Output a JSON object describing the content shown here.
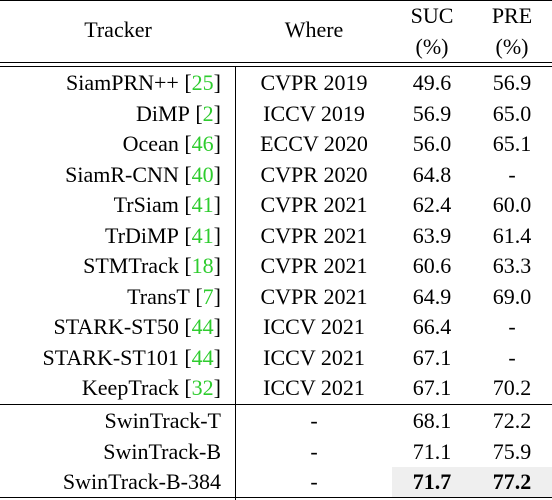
{
  "header": {
    "tracker": "Tracker",
    "where": "Where",
    "suc_line1": "SUC",
    "suc_line2": "(%)",
    "pre_line1": "PRE",
    "pre_line2": "(%)"
  },
  "rows": [
    {
      "name": "SiamPRN++",
      "ref": "25",
      "where": "CVPR 2019",
      "suc": "49.6",
      "pre": "56.9"
    },
    {
      "name": "DiMP",
      "ref": "2",
      "where": "ICCV 2019",
      "suc": "56.9",
      "pre": "65.0"
    },
    {
      "name": "Ocean",
      "ref": "46",
      "where": "ECCV 2020",
      "suc": "56.0",
      "pre": "65.1"
    },
    {
      "name": "SiamR-CNN",
      "ref": "40",
      "where": "CVPR 2020",
      "suc": "64.8",
      "pre": "-"
    },
    {
      "name": "TrSiam",
      "ref": "41",
      "where": "CVPR 2021",
      "suc": "62.4",
      "pre": "60.0"
    },
    {
      "name": "TrDiMP",
      "ref": "41",
      "where": "CVPR 2021",
      "suc": "63.9",
      "pre": "61.4"
    },
    {
      "name": "STMTrack",
      "ref": "18",
      "where": "CVPR 2021",
      "suc": "60.6",
      "pre": "63.3"
    },
    {
      "name": "TransT",
      "ref": "7",
      "where": "CVPR 2021",
      "suc": "64.9",
      "pre": "69.0"
    },
    {
      "name": "STARK-ST50",
      "ref": "44",
      "where": "ICCV 2021",
      "suc": "66.4",
      "pre": "-"
    },
    {
      "name": "STARK-ST101",
      "ref": "44",
      "where": "ICCV 2021",
      "suc": "67.1",
      "pre": "-"
    },
    {
      "name": "KeepTrack",
      "ref": "32",
      "where": "ICCV 2021",
      "suc": "67.1",
      "pre": "70.2"
    }
  ],
  "ours": [
    {
      "name": "SwinTrack-T",
      "where": "-",
      "suc": "68.1",
      "pre": "72.2"
    },
    {
      "name": "SwinTrack-B",
      "where": "-",
      "suc": "71.1",
      "pre": "75.9"
    },
    {
      "name": "SwinTrack-B-384",
      "where": "-",
      "suc": "71.7",
      "pre": "77.2"
    }
  ],
  "colors": {
    "reference_link": "#2ecc2e",
    "highlight_bg": "#efefef"
  }
}
